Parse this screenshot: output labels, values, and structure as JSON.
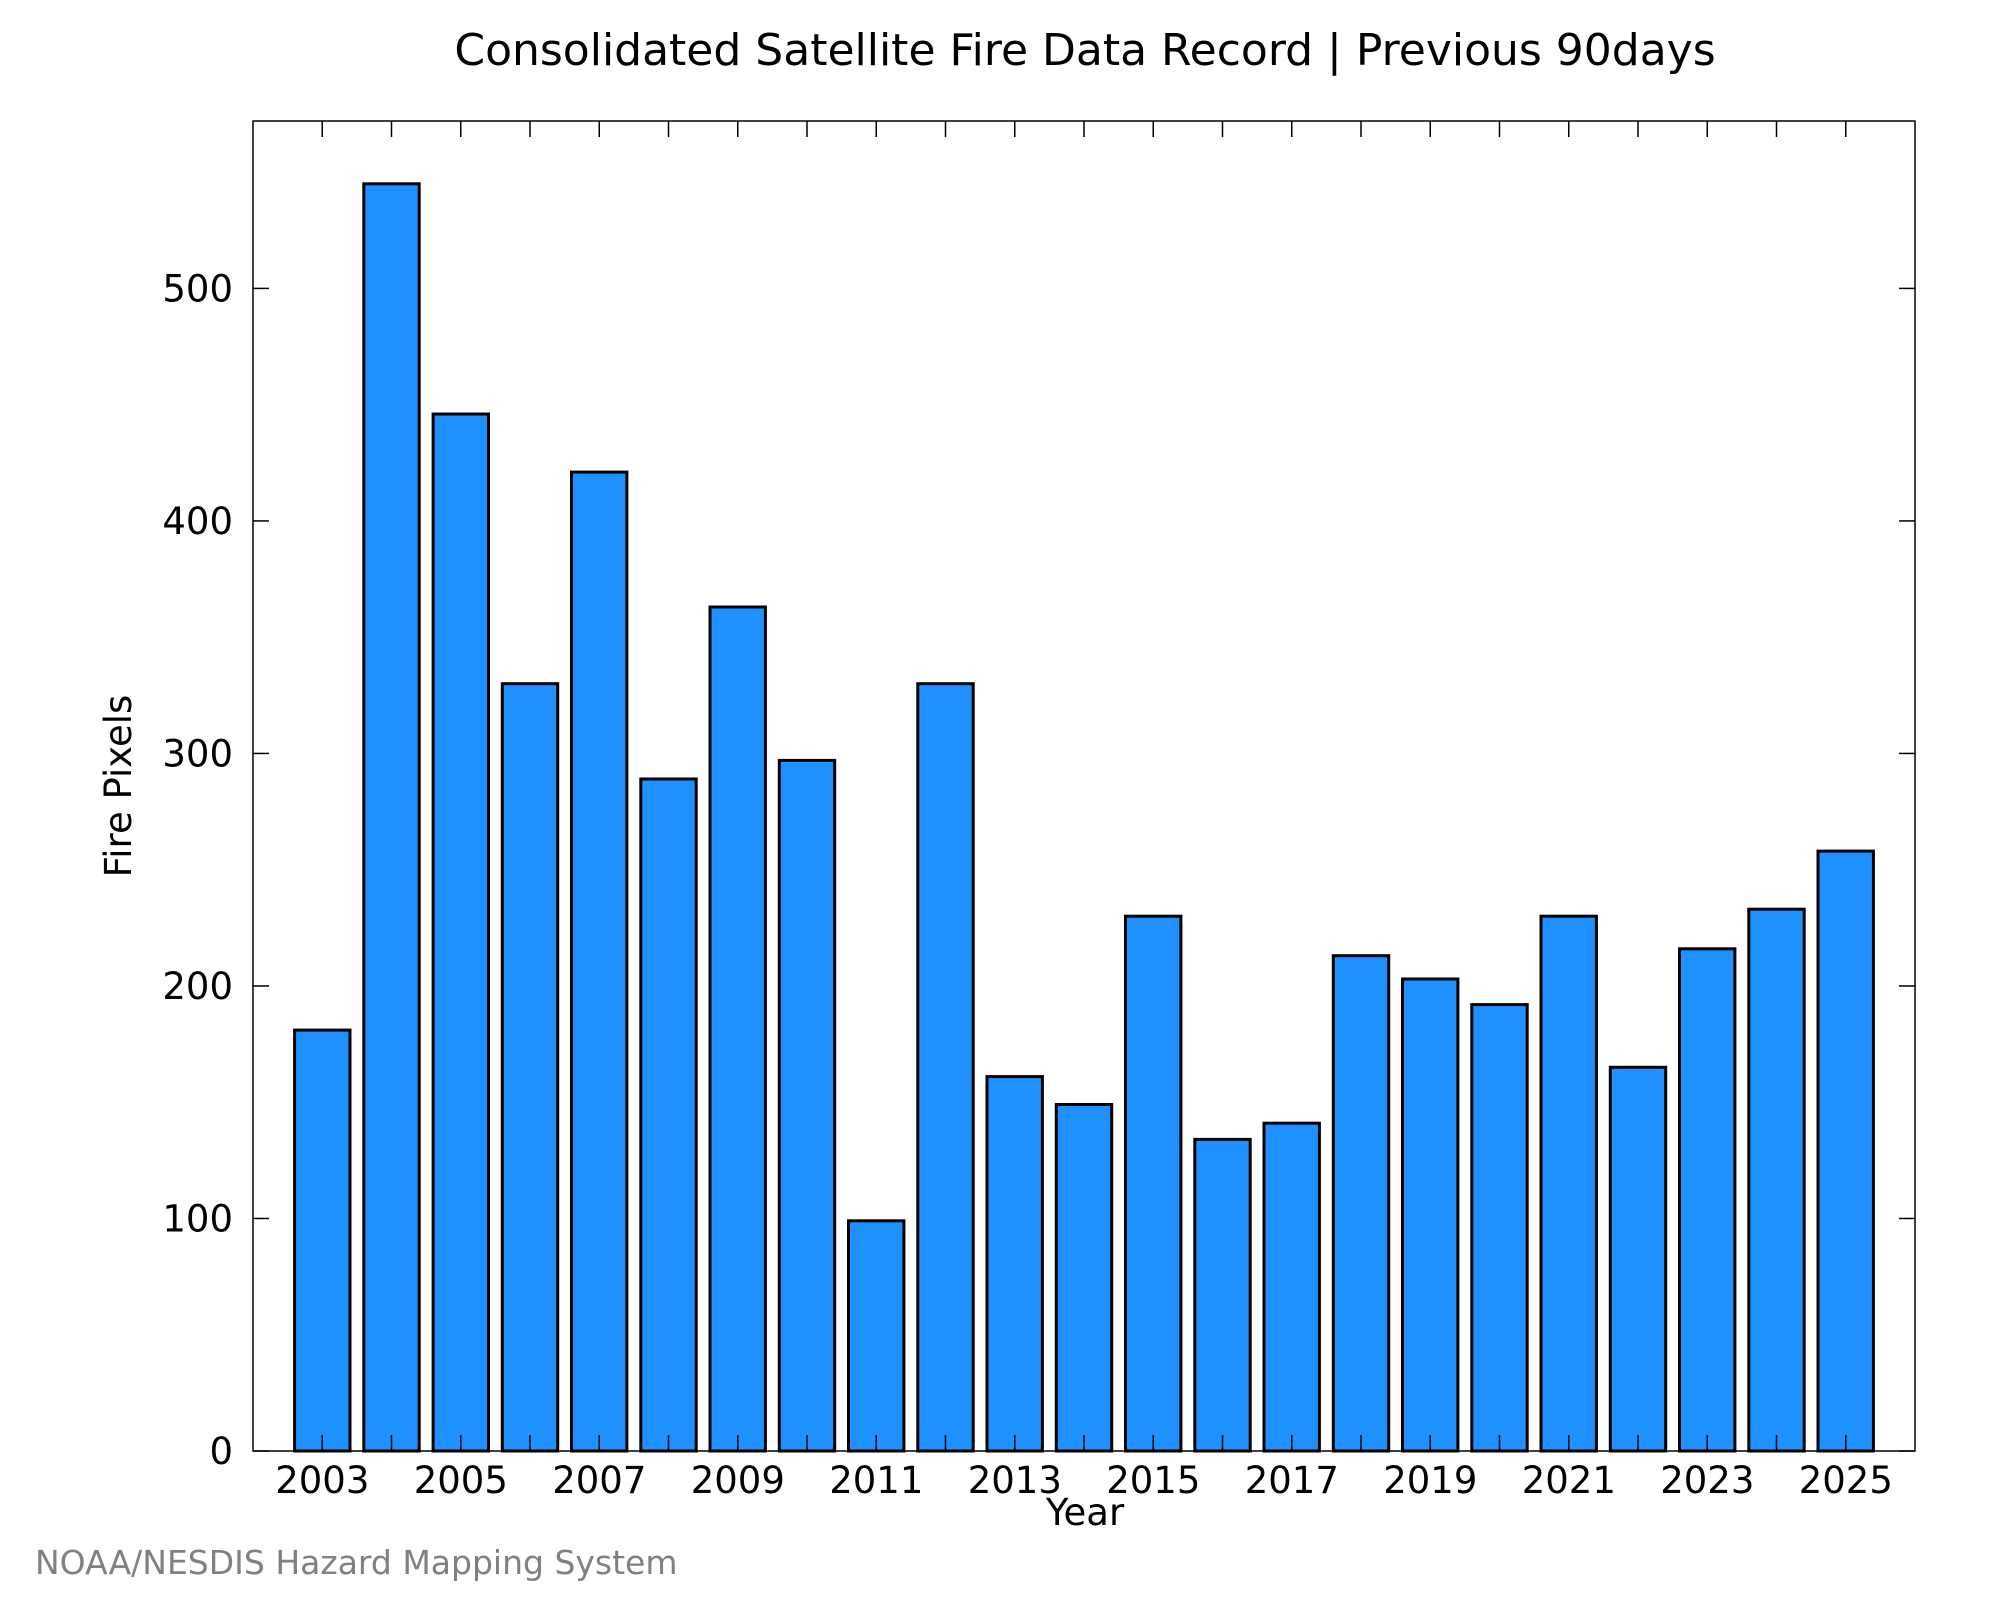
{
  "chart_data": {
    "type": "bar",
    "title": "Consolidated Satellite Fire Data Record | Previous 90days",
    "xlabel": "Year",
    "ylabel": "Fire Pixels",
    "categories": [
      "2003",
      "2004",
      "2005",
      "2006",
      "2007",
      "2008",
      "2009",
      "2010",
      "2011",
      "2012",
      "2013",
      "2014",
      "2015",
      "2016",
      "2017",
      "2018",
      "2019",
      "2020",
      "2021",
      "2022",
      "2023",
      "2024",
      "2025"
    ],
    "values": [
      181,
      545,
      446,
      330,
      421,
      289,
      363,
      297,
      99,
      330,
      161,
      149,
      230,
      134,
      141,
      213,
      203,
      192,
      230,
      165,
      216,
      233,
      258
    ],
    "xtick_labels": [
      "2003",
      "2005",
      "2007",
      "2009",
      "2011",
      "2013",
      "2015",
      "2017",
      "2019",
      "2021",
      "2023",
      "2025"
    ],
    "yticks": [
      0,
      100,
      200,
      300,
      400,
      500
    ],
    "ylim": [
      0,
      572
    ],
    "grid": false,
    "bar_color": "#1e90ff",
    "bar_edge_color": "#000000"
  },
  "credit": "NOAA/NESDIS Hazard Mapping System"
}
